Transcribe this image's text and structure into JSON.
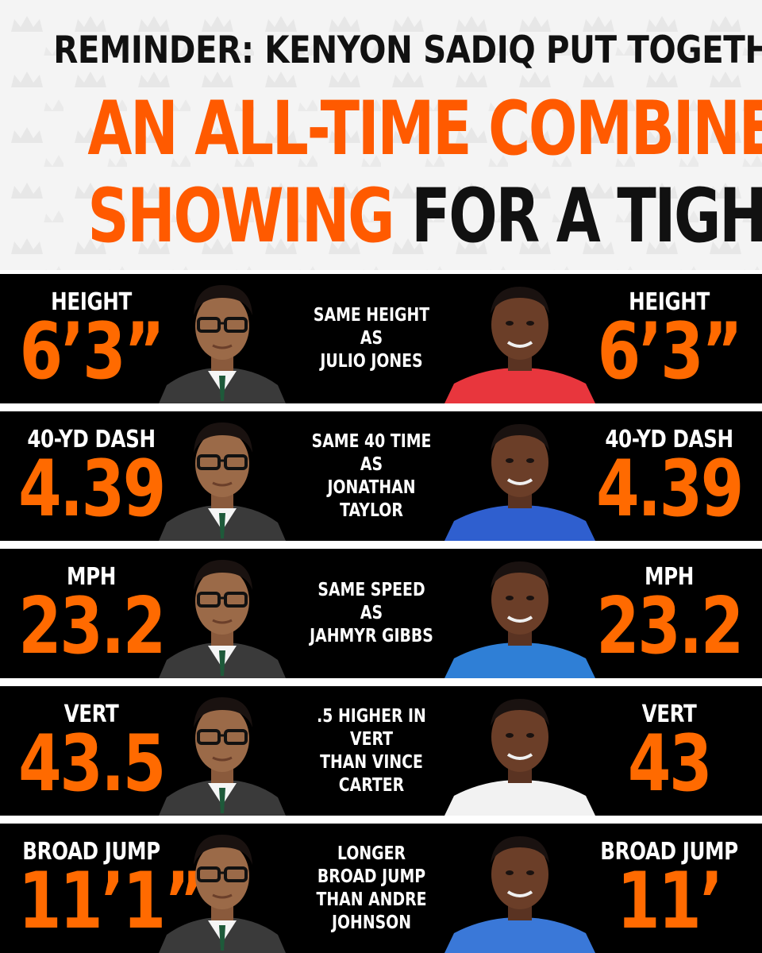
{
  "header": {
    "line1": "REMINDER: KENYON SADIQ PUT TOGETHER",
    "line2": "AN ALL-TIME COMBINE",
    "line3_orange": "SHOWING",
    "line3_black": "FOR A TIGHT END"
  },
  "colors": {
    "accent": "#ff6a00",
    "row_background": "#000000",
    "text_light": "#ffffff",
    "text_dark": "#111111"
  },
  "rows": [
    {
      "left_label": "HEIGHT",
      "left_value": "6’3”",
      "comparison": "SAME HEIGHT AS\nJULIO JONES",
      "right_label": "HEIGHT",
      "right_value": "6’3”",
      "comp_jersey_color": "#e8363d"
    },
    {
      "left_label": "40-YD DASH",
      "left_value": "4.39",
      "comparison": "SAME 40 TIME AS\nJONATHAN TAYLOR",
      "right_label": "40-YD DASH",
      "right_value": "4.39",
      "comp_jersey_color": "#2f5fcf"
    },
    {
      "left_label": "MPH",
      "left_value": "23.2",
      "comparison": "SAME SPEED AS\nJAHMYR GIBBS",
      "right_label": "MPH",
      "right_value": "23.2",
      "comp_jersey_color": "#2f7fd6"
    },
    {
      "left_label": "VERT",
      "left_value": "43.5",
      "comparison": ".5 HIGHER IN VERT\nTHAN VINCE CARTER",
      "right_label": "VERT",
      "right_value": "43",
      "comp_jersey_color": "#f2f2f2"
    },
    {
      "left_label": "BROAD JUMP",
      "left_value": "11’1”",
      "comparison": "LONGER BROAD JUMP\nTHAN ANDRE JOHNSON",
      "right_label": "BROAD JUMP",
      "right_value": "11’",
      "comp_jersey_color": "#3a78d8"
    }
  ]
}
